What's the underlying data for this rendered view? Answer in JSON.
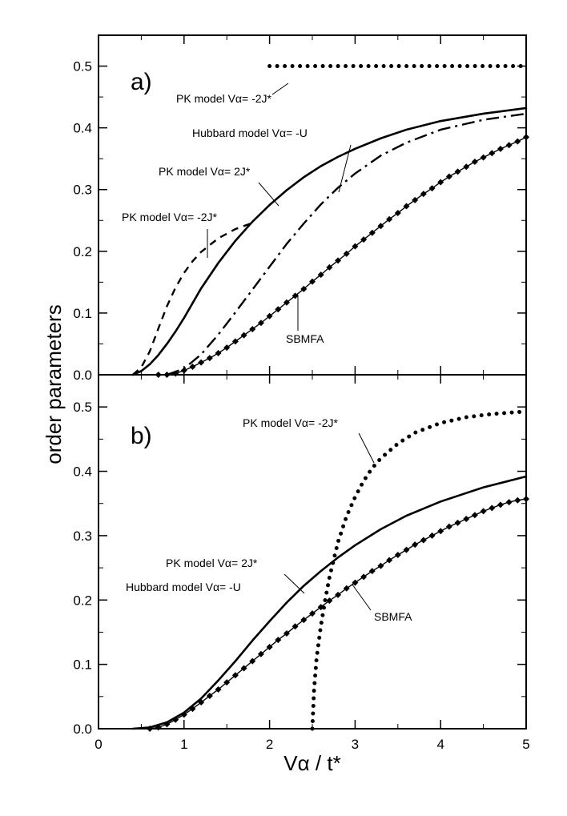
{
  "chart_data": [
    {
      "type": "line",
      "panel_label": "a)",
      "xlim": [
        0,
        5
      ],
      "ylim": [
        0,
        0.55
      ],
      "xticks": [
        0,
        1,
        2,
        3,
        4,
        5
      ],
      "yticks": [
        0.0,
        0.1,
        0.2,
        0.3,
        0.4,
        0.5
      ],
      "ytick_labels": [
        "0.0",
        "0.1",
        "0.2",
        "0.3",
        "0.4",
        "0.5"
      ],
      "series": [
        {
          "name": "PK model Vα= -2J* (dotted)",
          "style": "dotted",
          "x": [
            2.0,
            2.5,
            3.0,
            3.5,
            4.0,
            4.5,
            5.0
          ],
          "y": [
            0.5,
            0.5,
            0.5,
            0.5,
            0.5,
            0.5,
            0.5
          ]
        },
        {
          "name": "PK model Vα= 2J* (solid)",
          "style": "solid",
          "x": [
            0.4,
            0.5,
            0.6,
            0.7,
            0.8,
            0.9,
            1.0,
            1.2,
            1.4,
            1.6,
            1.8,
            2.0,
            2.2,
            2.4,
            2.6,
            2.8,
            3.0,
            3.3,
            3.6,
            4.0,
            4.5,
            5.0
          ],
          "y": [
            0.0,
            0.006,
            0.017,
            0.032,
            0.05,
            0.07,
            0.092,
            0.14,
            0.181,
            0.217,
            0.248,
            0.275,
            0.299,
            0.32,
            0.338,
            0.353,
            0.366,
            0.383,
            0.397,
            0.411,
            0.423,
            0.432
          ]
        },
        {
          "name": "PK model Vα= -2J* (dashed)",
          "style": "dashed",
          "x": [
            0.4,
            0.5,
            0.6,
            0.7,
            0.8,
            0.9,
            1.0,
            1.1,
            1.2,
            1.4,
            1.6,
            1.8
          ],
          "y": [
            0.0,
            0.012,
            0.038,
            0.075,
            0.111,
            0.141,
            0.165,
            0.184,
            0.199,
            0.221,
            0.236,
            0.246
          ]
        },
        {
          "name": "Hubbard model Vα= -U (dash-dot)",
          "style": "dashdot",
          "x": [
            0.8,
            1.0,
            1.2,
            1.4,
            1.6,
            1.8,
            2.0,
            2.2,
            2.4,
            2.6,
            2.8,
            3.0,
            3.3,
            3.6,
            4.0,
            4.5,
            5.0
          ],
          "y": [
            0.0,
            0.01,
            0.033,
            0.065,
            0.101,
            0.138,
            0.175,
            0.212,
            0.245,
            0.276,
            0.303,
            0.326,
            0.355,
            0.376,
            0.397,
            0.413,
            0.423
          ]
        },
        {
          "name": "SBMFA",
          "style": "diamond-line",
          "x": [
            0.7,
            0.8,
            0.9,
            1.0,
            1.1,
            1.2,
            1.3,
            1.4,
            1.5,
            1.6,
            1.7,
            1.8,
            1.9,
            2.0,
            2.1,
            2.2,
            2.3,
            2.4,
            2.5,
            2.6,
            2.7,
            2.8,
            2.9,
            3.0,
            3.1,
            3.2,
            3.3,
            3.4,
            3.5,
            3.6,
            3.7,
            3.8,
            3.9,
            4.0,
            4.1,
            4.2,
            4.3,
            4.4,
            4.5,
            4.6,
            4.7,
            4.8,
            4.9,
            5.0
          ],
          "y": [
            0.0,
            0.0,
            0.002,
            0.007,
            0.013,
            0.02,
            0.027,
            0.035,
            0.044,
            0.054,
            0.064,
            0.074,
            0.084,
            0.095,
            0.106,
            0.117,
            0.128,
            0.139,
            0.151,
            0.162,
            0.174,
            0.185,
            0.196,
            0.208,
            0.219,
            0.23,
            0.241,
            0.252,
            0.262,
            0.273,
            0.283,
            0.293,
            0.302,
            0.312,
            0.321,
            0.329,
            0.337,
            0.345,
            0.352,
            0.359,
            0.366,
            0.372,
            0.378,
            0.385
          ]
        }
      ],
      "annotations": [
        {
          "text": "PK model  Vα= -2J*"
        },
        {
          "text": "Hubbard model  Vα= -U"
        },
        {
          "text": "PK model  Vα= 2J*"
        },
        {
          "text": "PK model  Vα= -2J*"
        },
        {
          "text": "SBMFA"
        }
      ]
    },
    {
      "type": "line",
      "panel_label": "b)",
      "xlim": [
        0,
        5
      ],
      "ylim": [
        0,
        0.55
      ],
      "xticks": [
        0,
        1,
        2,
        3,
        4,
        5
      ],
      "xtick_labels": [
        "0",
        "1",
        "2",
        "3",
        "4",
        "5"
      ],
      "yticks": [
        0.0,
        0.1,
        0.2,
        0.3,
        0.4,
        0.5
      ],
      "ytick_labels": [
        "0.0",
        "0.1",
        "0.2",
        "0.3",
        "0.4",
        "0.5"
      ],
      "series": [
        {
          "name": "PK model Vα= -2J* (dotted)",
          "style": "dotted",
          "x": [
            2.5,
            2.52,
            2.55,
            2.6,
            2.65,
            2.7,
            2.8,
            2.9,
            3.0,
            3.1,
            3.2,
            3.3,
            3.5,
            3.7,
            4.0,
            4.3,
            4.6,
            5.0
          ],
          "y": [
            0.0,
            0.06,
            0.11,
            0.16,
            0.2,
            0.235,
            0.29,
            0.33,
            0.36,
            0.385,
            0.405,
            0.42,
            0.443,
            0.46,
            0.475,
            0.484,
            0.489,
            0.493
          ]
        },
        {
          "name": "PK model Vα= 2J* / Hubbard model Vα= -U (solid)",
          "style": "solid",
          "x": [
            0.4,
            0.6,
            0.8,
            1.0,
            1.2,
            1.4,
            1.6,
            1.8,
            2.0,
            2.2,
            2.4,
            2.6,
            2.8,
            3.0,
            3.3,
            3.6,
            4.0,
            4.5,
            5.0
          ],
          "y": [
            0.0,
            0.002,
            0.01,
            0.025,
            0.047,
            0.075,
            0.105,
            0.137,
            0.167,
            0.196,
            0.222,
            0.245,
            0.266,
            0.285,
            0.31,
            0.331,
            0.353,
            0.375,
            0.392
          ]
        },
        {
          "name": "SBMFA",
          "style": "diamond-line",
          "x": [
            0.6,
            0.7,
            0.8,
            0.9,
            1.0,
            1.1,
            1.2,
            1.3,
            1.4,
            1.5,
            1.6,
            1.7,
            1.8,
            1.9,
            2.0,
            2.1,
            2.2,
            2.3,
            2.4,
            2.5,
            2.6,
            2.7,
            2.8,
            2.9,
            3.0,
            3.1,
            3.2,
            3.3,
            3.4,
            3.5,
            3.6,
            3.7,
            3.8,
            3.9,
            4.0,
            4.1,
            4.2,
            4.3,
            4.4,
            4.5,
            4.6,
            4.7,
            4.8,
            4.9,
            5.0
          ],
          "y": [
            0.0,
            0.002,
            0.007,
            0.014,
            0.022,
            0.031,
            0.041,
            0.051,
            0.061,
            0.072,
            0.083,
            0.094,
            0.105,
            0.116,
            0.127,
            0.138,
            0.148,
            0.159,
            0.169,
            0.179,
            0.189,
            0.199,
            0.208,
            0.218,
            0.227,
            0.236,
            0.245,
            0.253,
            0.262,
            0.27,
            0.278,
            0.286,
            0.293,
            0.3,
            0.307,
            0.314,
            0.32,
            0.326,
            0.332,
            0.338,
            0.343,
            0.348,
            0.352,
            0.355,
            0.357
          ]
        }
      ],
      "annotations": [
        {
          "text": "PK model  Vα= -2J*"
        },
        {
          "text": "PK model  Vα= 2J*"
        },
        {
          "text": "Hubbard model  Vα= -U"
        },
        {
          "text": "SBMFA"
        }
      ]
    }
  ],
  "labels": {
    "ylabel": "order parameters",
    "xlabel": "Vα / t*"
  }
}
